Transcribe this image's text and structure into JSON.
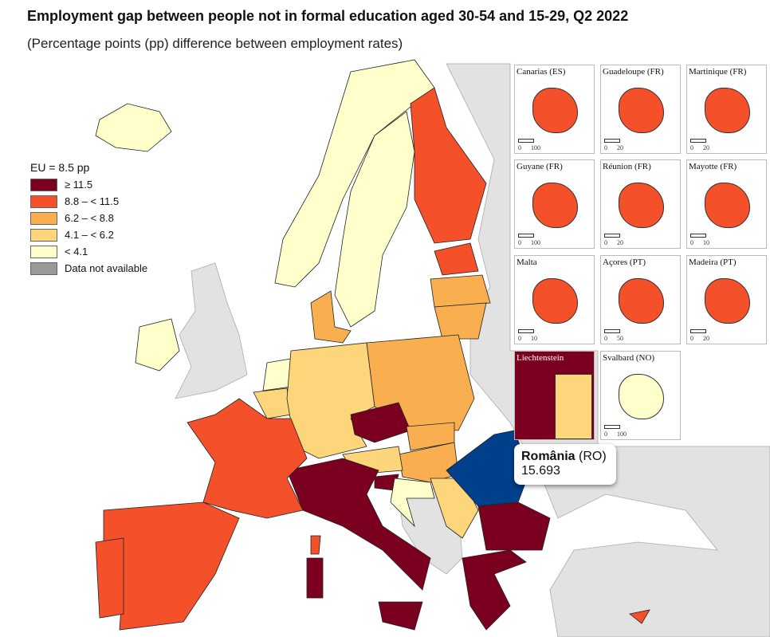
{
  "header": {
    "title": "Employment gap between people not in formal education aged 30-54 and 15-29, Q2 2022",
    "subtitle": "(Percentage points (pp) difference between employment rates)"
  },
  "legend": {
    "title": "EU = 8.5 pp",
    "items": [
      {
        "label": "≥ 11.5",
        "color": "#7b0020"
      },
      {
        "label": "8.8 – < 11.5",
        "color": "#f4502a"
      },
      {
        "label": "6.2 – < 8.8",
        "color": "#f9ae4f"
      },
      {
        "label": "4.1 – < 6.2",
        "color": "#fdd57a"
      },
      {
        "label": "< 4.1",
        "color": "#ffffcc"
      },
      {
        "label": "Data not available",
        "color": "#999999"
      }
    ]
  },
  "insets": [
    {
      "label": "Canarias (ES)",
      "scale": [
        "0",
        "100"
      ]
    },
    {
      "label": "Guadeloupe (FR)",
      "scale": [
        "0",
        "20"
      ]
    },
    {
      "label": "Martinique (FR)",
      "scale": [
        "0",
        "20"
      ]
    },
    {
      "label": "Guyane (FR)",
      "scale": [
        "0",
        "100"
      ]
    },
    {
      "label": "Réunion (FR)",
      "scale": [
        "0",
        "20"
      ]
    },
    {
      "label": "Mayotte (FR)",
      "scale": [
        "0",
        "10"
      ]
    },
    {
      "label": "Malta",
      "scale": [
        "0",
        "10"
      ]
    },
    {
      "label": "Açores (PT)",
      "scale": [
        "0",
        "50"
      ]
    },
    {
      "label": "Madeira (PT)",
      "scale": [
        "0",
        "20"
      ]
    },
    {
      "label": "Liechtenstein"
    },
    {
      "label": "Svalbard (NO)",
      "scale": [
        "0",
        "100"
      ]
    }
  ],
  "tooltip": {
    "name": "România",
    "code": "(RO)",
    "value": 15.693
  }
}
